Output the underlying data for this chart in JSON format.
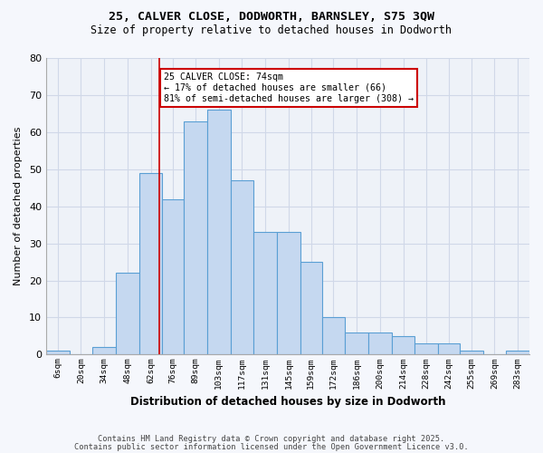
{
  "title1": "25, CALVER CLOSE, DODWORTH, BARNSLEY, S75 3QW",
  "title2": "Size of property relative to detached houses in Dodworth",
  "xlabel": "Distribution of detached houses by size in Dodworth",
  "ylabel": "Number of detached properties",
  "categories": [
    "6sqm",
    "20sqm",
    "34sqm",
    "48sqm",
    "62sqm",
    "76sqm",
    "89sqm",
    "103sqm",
    "117sqm",
    "131sqm",
    "145sqm",
    "159sqm",
    "172sqm",
    "186sqm",
    "200sqm",
    "214sqm",
    "228sqm",
    "242sqm",
    "255sqm",
    "269sqm",
    "283sqm"
  ],
  "values": [
    1,
    0,
    2,
    22,
    49,
    42,
    63,
    66,
    47,
    33,
    33,
    25,
    10,
    6,
    6,
    5,
    3,
    3,
    1,
    0,
    1
  ],
  "bar_color": "#c5d8f0",
  "bar_edge_color": "#5a9fd4",
  "property_line_x": 74,
  "bin_edges": [
    6,
    20,
    34,
    48,
    62,
    76,
    89,
    103,
    117,
    131,
    145,
    159,
    172,
    186,
    200,
    214,
    228,
    242,
    255,
    269,
    283,
    297
  ],
  "annotation_text": "25 CALVER CLOSE: 74sqm\n← 17% of detached houses are smaller (66)\n81% of semi-detached houses are larger (308) →",
  "annotation_box_color": "#ffffff",
  "annotation_box_edge": "#cc0000",
  "vline_color": "#cc0000",
  "grid_color": "#d0d8e8",
  "background_color": "#eef2f8",
  "fig_background": "#f5f7fc",
  "footer1": "Contains HM Land Registry data © Crown copyright and database right 2025.",
  "footer2": "Contains public sector information licensed under the Open Government Licence v3.0.",
  "ylim": [
    0,
    80
  ],
  "yticks": [
    0,
    10,
    20,
    30,
    40,
    50,
    60,
    70,
    80
  ]
}
